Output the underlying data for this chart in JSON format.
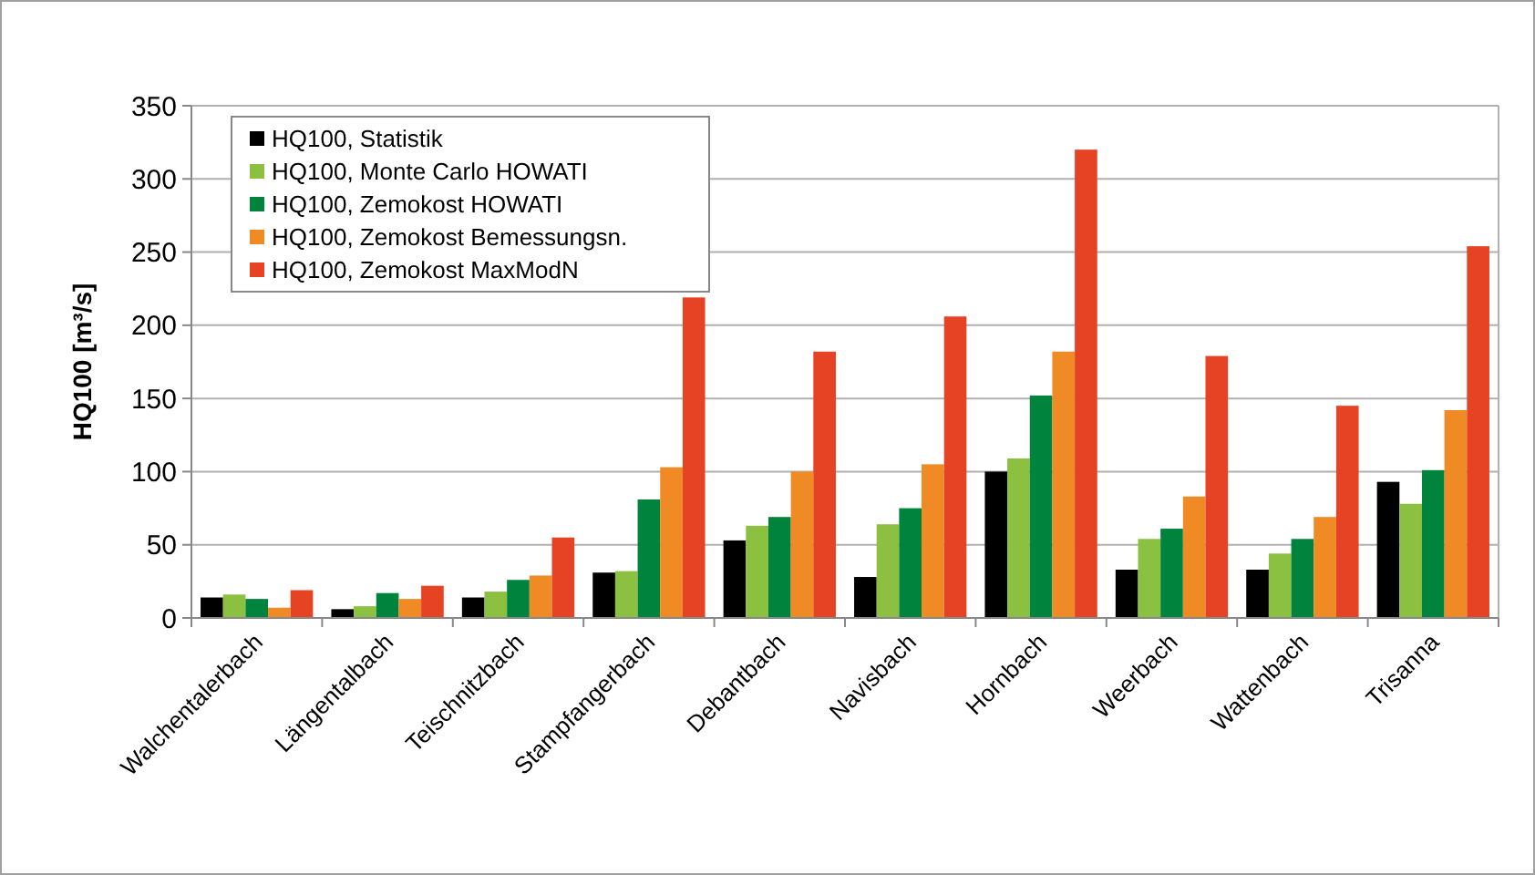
{
  "chart_data": {
    "type": "bar",
    "ylabel": "HQ100 [m³/s]",
    "categories": [
      "Walchentalerbach",
      "Längentalbach",
      "Teischnitzbach",
      "Stampfangerbach",
      "Debantbach",
      "Navisbach",
      "Hornbach",
      "Weerbach",
      "Wattenbach",
      "Trisanna"
    ],
    "series": [
      {
        "name": "HQ100, Statistik",
        "color": "#000000",
        "values": [
          14,
          6,
          14,
          31,
          53,
          28,
          100,
          33,
          33,
          93
        ]
      },
      {
        "name": "HQ100, Monte Carlo HOWATI",
        "color": "#8bc040",
        "values": [
          16,
          8,
          18,
          32,
          63,
          64,
          109,
          54,
          44,
          78
        ]
      },
      {
        "name": "HQ100, Zemokost HOWATI",
        "color": "#00843d",
        "values": [
          13,
          17,
          26,
          81,
          69,
          75,
          152,
          61,
          54,
          101
        ]
      },
      {
        "name": "HQ100, Zemokost Bemessungsn.",
        "color": "#f08a24",
        "values": [
          7,
          13,
          29,
          103,
          100,
          105,
          182,
          83,
          69,
          142
        ]
      },
      {
        "name": "HQ100, Zemokost MaxModN",
        "color": "#e64325",
        "values": [
          19,
          22,
          55,
          219,
          182,
          206,
          320,
          179,
          145,
          254
        ]
      }
    ],
    "ylim": [
      0,
      350
    ],
    "yticks": [
      0,
      50,
      100,
      150,
      200,
      250,
      300,
      350
    ],
    "grid": "y",
    "legend": "top left"
  }
}
